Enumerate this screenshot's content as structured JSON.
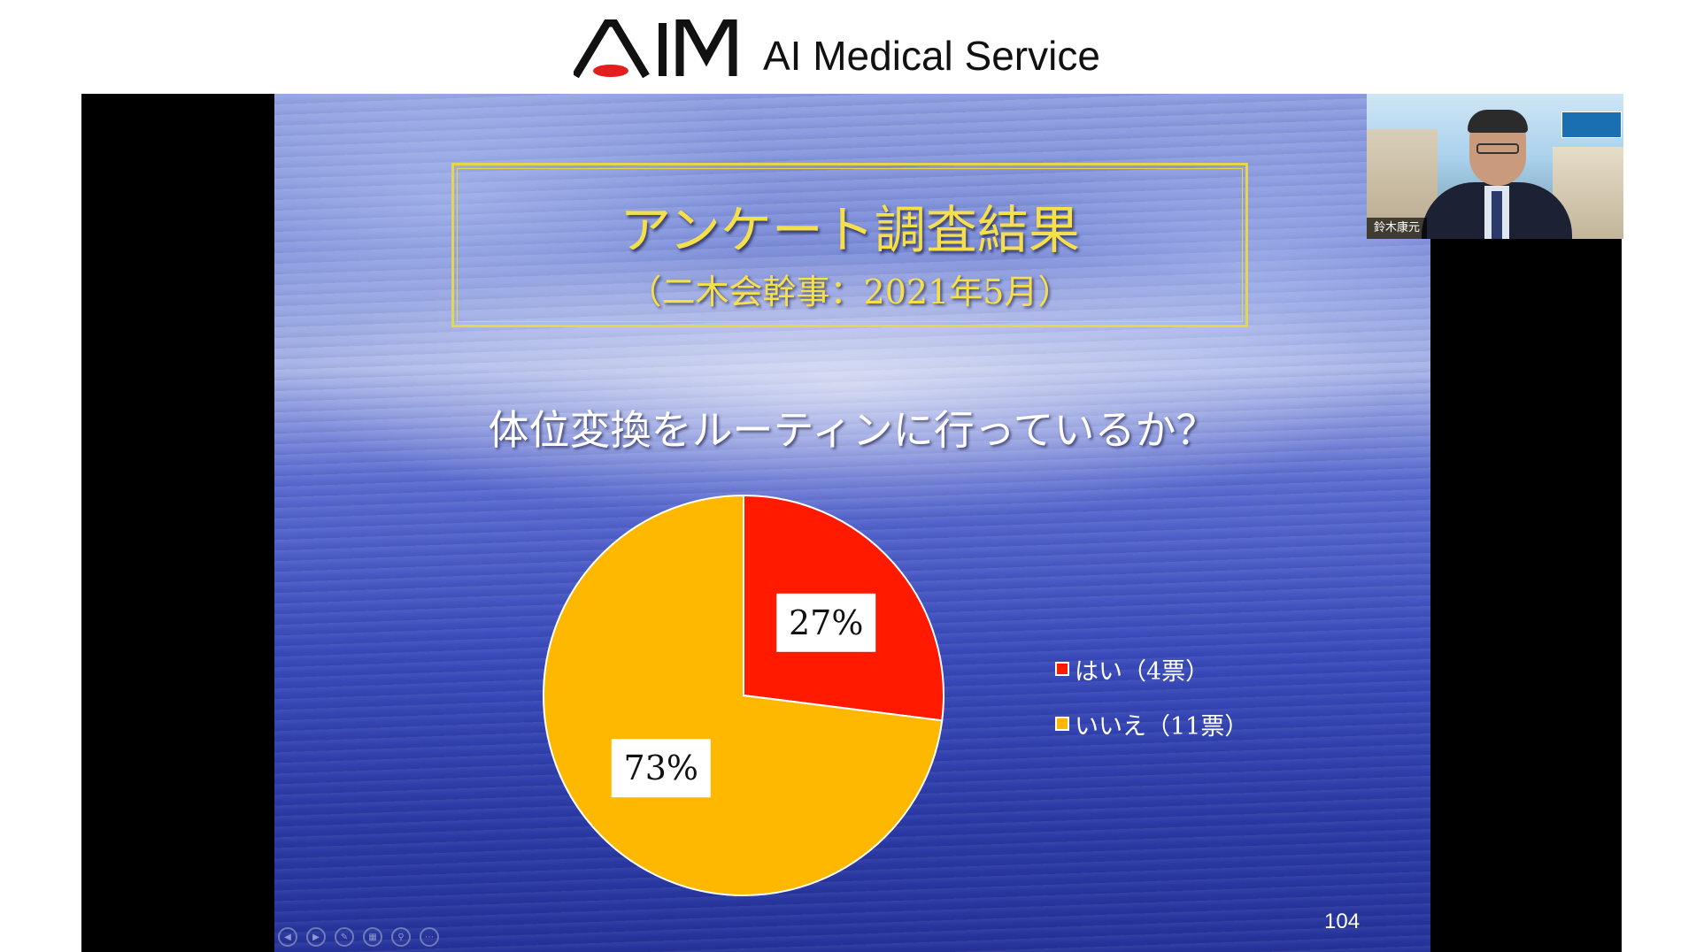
{
  "header": {
    "logo_mark_text": "AIM",
    "brand_name": "AI Medical Service",
    "colors": {
      "logo": "#111111",
      "logo_accent": "#e31e1e"
    }
  },
  "slide": {
    "title": "アンケート調査結果",
    "subtitle": "（二木会幹事：2021年5月）",
    "question": "体位変換をルーティンに行っているか？",
    "page_number": "104",
    "controls": [
      "previous-icon",
      "next-icon",
      "pen-icon",
      "slides-icon",
      "zoom-icon",
      "more-icon"
    ],
    "colors": {
      "title": "#f5e04a",
      "title_border": "#e8d64a",
      "text": "#ffffff"
    }
  },
  "chart_data": {
    "type": "pie",
    "categories": [
      "はい（4票）",
      "いいえ（11票）"
    ],
    "values": [
      27,
      73
    ],
    "labels": [
      "27%",
      "73%"
    ],
    "colors": [
      "#ff1a00",
      "#ffb800"
    ],
    "legend_position": "right"
  },
  "video": {
    "participant_name": "鈴木康元"
  }
}
